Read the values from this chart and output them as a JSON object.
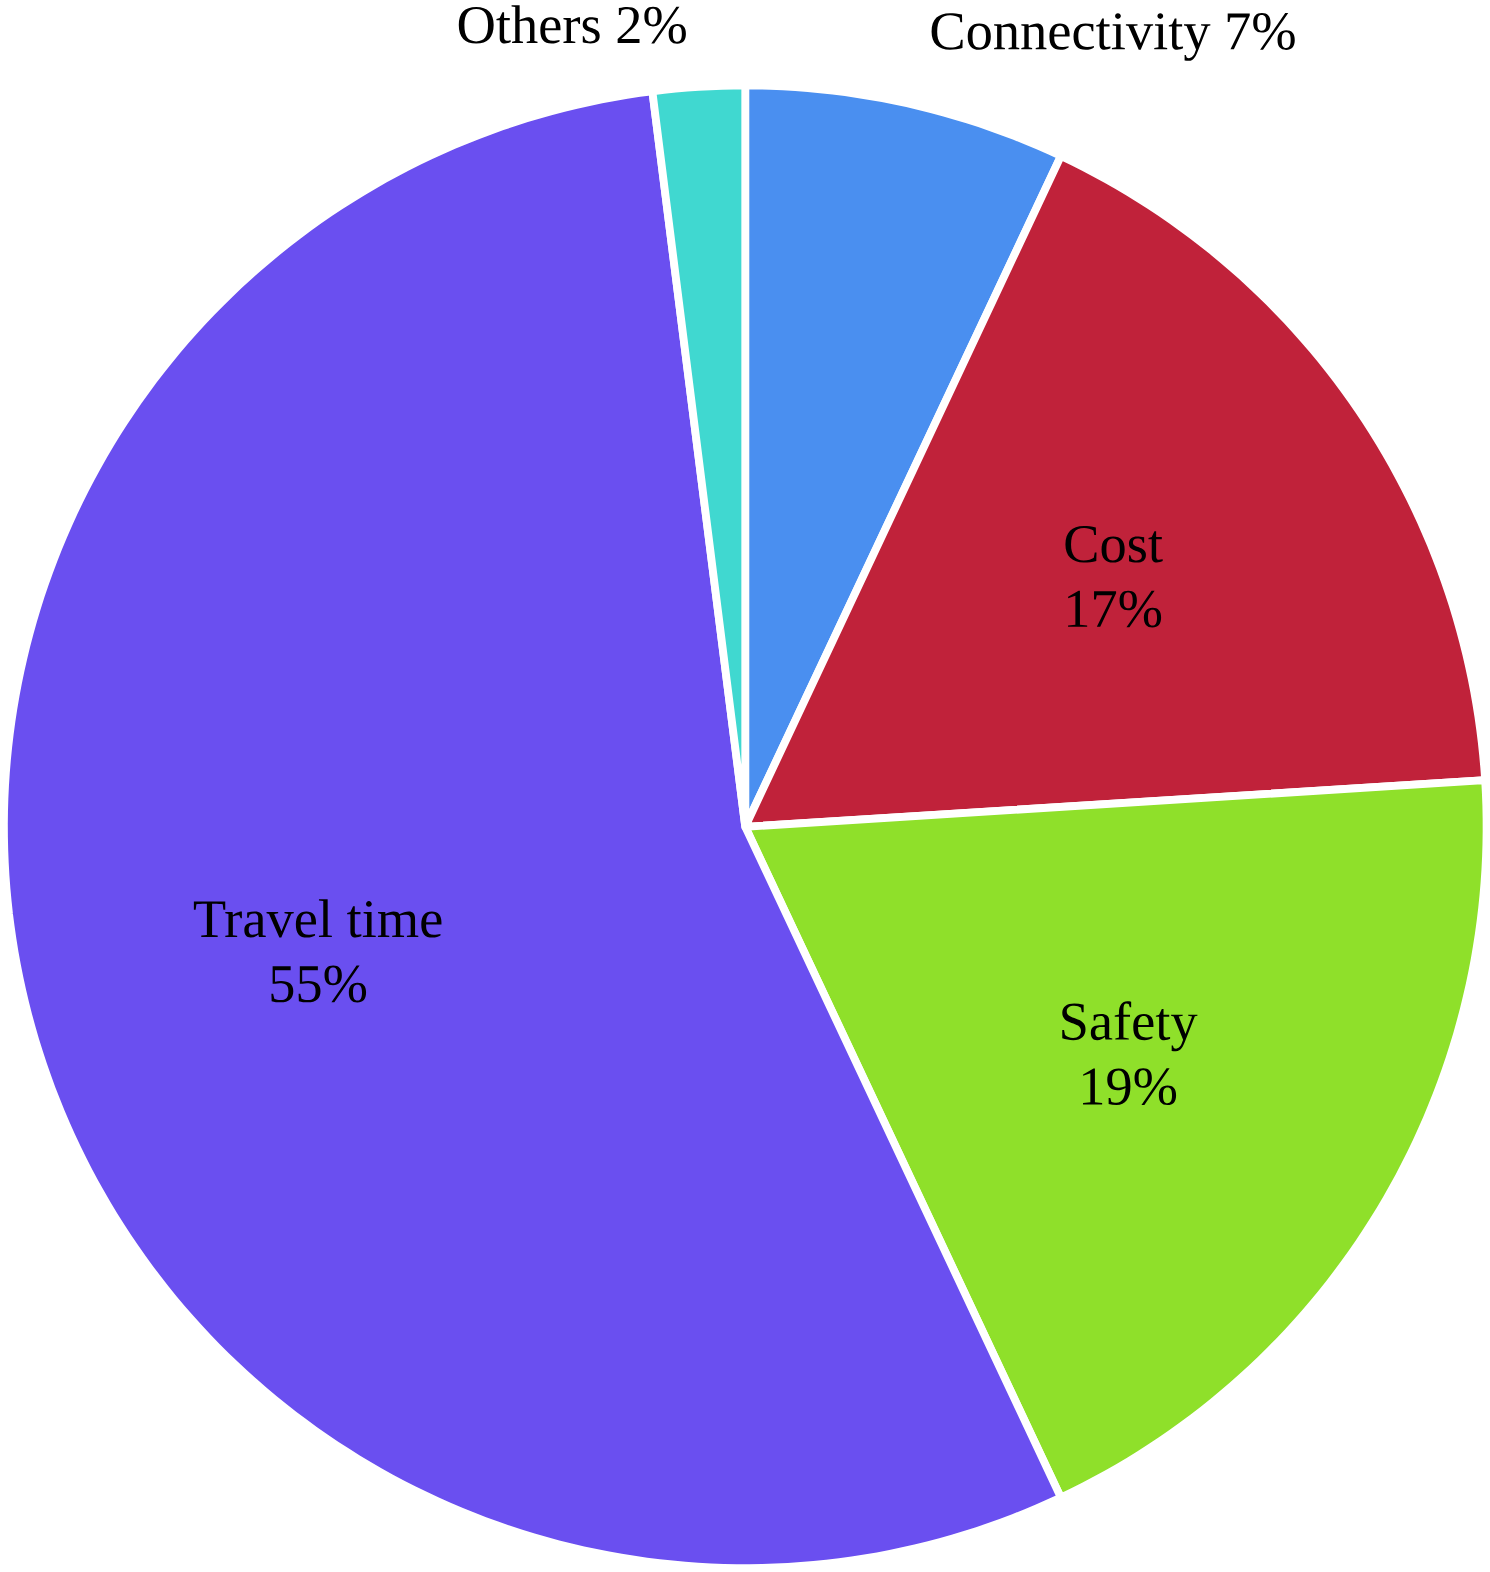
{
  "chart_data": {
    "type": "pie",
    "categories": [
      "Connectivity",
      "Cost",
      "Safety",
      "Travel time",
      "Others"
    ],
    "values": [
      7,
      17,
      19,
      55,
      2
    ],
    "value_labels": [
      "7%",
      "17%",
      "19%",
      "55%",
      "2%"
    ],
    "colors": [
      "#4a8ff0",
      "#c0223a",
      "#8fe02a",
      "#6a4ff0",
      "#40d8d0"
    ]
  }
}
